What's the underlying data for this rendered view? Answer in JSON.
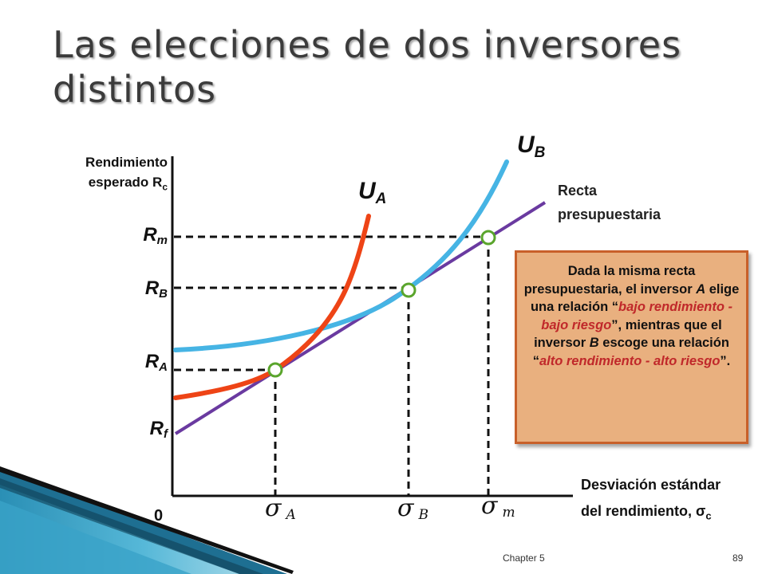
{
  "title": "Las elecciones de dos inversores distintos",
  "axes": {
    "y_label_line1": "Rendimiento",
    "y_label_line2_pre": "esperado R",
    "y_label_line2_sub": "c",
    "x_label_line1": "Desviación estándar",
    "x_label_line2_pre": "del rendimiento, σ",
    "x_label_line2_sub": "c",
    "origin": "0"
  },
  "y_ticks": [
    {
      "main": "R",
      "sub": "m"
    },
    {
      "main": "R",
      "sub": "B"
    },
    {
      "main": "R",
      "sub": "A"
    },
    {
      "main": "R",
      "sub": "f"
    }
  ],
  "x_ticks": [
    {
      "main": "σ",
      "sub": "A"
    },
    {
      "main": "σ",
      "sub": "B"
    },
    {
      "main": "σ",
      "sub": "m"
    }
  ],
  "curves": {
    "ua": {
      "main": "U",
      "sub": "A"
    },
    "ub": {
      "main": "U",
      "sub": "B"
    },
    "budget_line1": "Recta",
    "budget_line2": "presupuestaria"
  },
  "note": {
    "p1": "Dada la misma recta presupuestaria, el inversor ",
    "p2": "A",
    "p3": " elige una relación “",
    "p4": "bajo rendimiento - bajo riesgo",
    "p5": "”, mientras que el inversor ",
    "p6": "B",
    "p7": " escoge una relación “",
    "p8": "alto rendimiento - alto riesgo",
    "p9": "”."
  },
  "footer": {
    "chapter": "Chapter 5",
    "page": "89"
  },
  "colors": {
    "ua": "#ee4416",
    "ub": "#46b4e4",
    "budget": "#6a3aa0",
    "point_stroke": "#5aa52c",
    "note_fill": "#e9b07f",
    "note_border": "#c8602a",
    "note_emphasis": "#c0282a"
  }
}
